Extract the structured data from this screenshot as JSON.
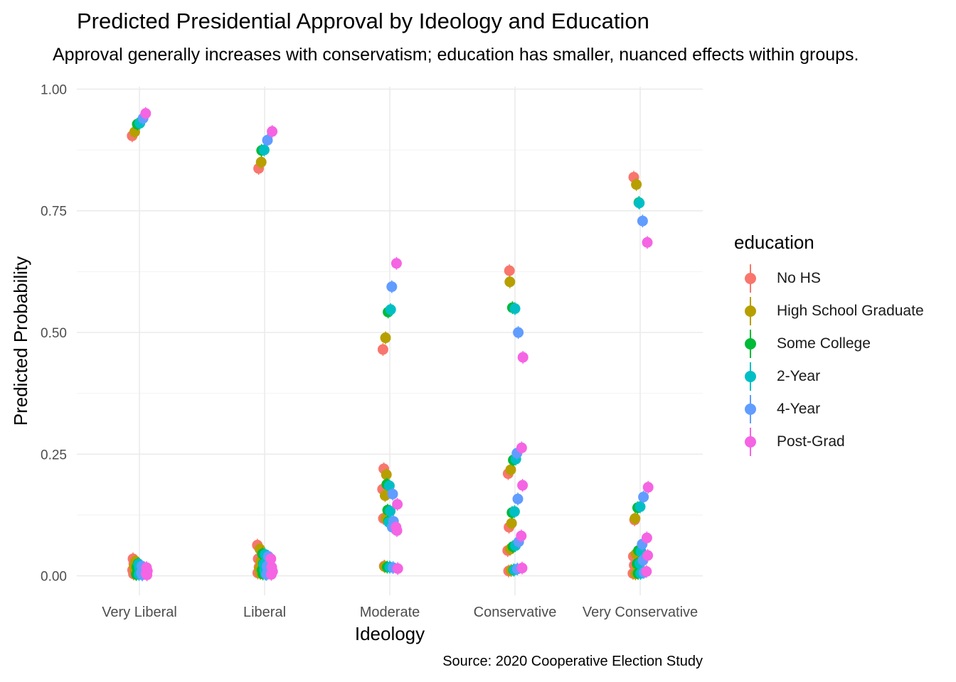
{
  "title": "Predicted Presidential Approval by Ideology and Education",
  "subtitle": "Approval generally increases with conservatism; education has smaller, nuanced effects within groups.",
  "caption": "Source: 2020 Cooperative Election Study",
  "legend": {
    "title": "education",
    "items": [
      {
        "label": "No HS",
        "color": "#F8766D"
      },
      {
        "label": "High School Graduate",
        "color": "#B79F00"
      },
      {
        "label": "Some College",
        "color": "#00BA38"
      },
      {
        "label": "2-Year",
        "color": "#00BFC4"
      },
      {
        "label": "4-Year",
        "color": "#619CFF"
      },
      {
        "label": "Post-Grad",
        "color": "#F564E3"
      }
    ]
  },
  "chart_data": {
    "type": "scatter",
    "xlabel": "Ideology",
    "ylabel": "Predicted Probability",
    "categories": [
      "Very Liberal",
      "Liberal",
      "Moderate",
      "Conservative",
      "Very Conservative"
    ],
    "ylim": [
      -0.04,
      1.005
    ],
    "yticks": [
      0.0,
      0.25,
      0.5,
      0.75,
      1.0
    ],
    "ytick_labels": [
      "0.00",
      "0.25",
      "0.50",
      "0.75",
      "1.00"
    ],
    "grid": true,
    "legend_position": "right",
    "series": [
      {
        "name": "No HS",
        "color": "#F8766D",
        "values": [
          [
            0.904,
            0.035,
            0.025,
            0.012,
            0.004
          ],
          [
            0.837,
            0.063,
            0.035,
            0.018,
            0.006
          ],
          [
            0.465,
            0.22,
            0.178,
            0.118,
            0.02
          ],
          [
            0.627,
            0.21,
            0.1,
            0.052,
            0.01
          ],
          [
            0.819,
            0.115,
            0.04,
            0.022,
            0.005
          ]
        ]
      },
      {
        "name": "High School Graduate",
        "color": "#B79F00",
        "values": [
          [
            0.912,
            0.03,
            0.02,
            0.01,
            0.003
          ],
          [
            0.85,
            0.055,
            0.03,
            0.015,
            0.005
          ],
          [
            0.489,
            0.208,
            0.165,
            0.118,
            0.019
          ],
          [
            0.604,
            0.218,
            0.108,
            0.055,
            0.011
          ],
          [
            0.804,
            0.118,
            0.045,
            0.022,
            0.004
          ]
        ]
      },
      {
        "name": "Some College",
        "color": "#00BA38",
        "values": [
          [
            0.928,
            0.025,
            0.018,
            0.008,
            0.003
          ],
          [
            0.874,
            0.045,
            0.025,
            0.012,
            0.004
          ],
          [
            0.542,
            0.188,
            0.135,
            0.112,
            0.018
          ],
          [
            0.551,
            0.238,
            0.13,
            0.06,
            0.012
          ],
          [
            0.767,
            0.14,
            0.052,
            0.025,
            0.005
          ]
        ]
      },
      {
        "name": "2-Year",
        "color": "#00BFC4",
        "values": [
          [
            0.93,
            0.024,
            0.016,
            0.008,
            0.003
          ],
          [
            0.875,
            0.044,
            0.024,
            0.012,
            0.004
          ],
          [
            0.547,
            0.185,
            0.133,
            0.11,
            0.018
          ],
          [
            0.549,
            0.24,
            0.132,
            0.062,
            0.012
          ],
          [
            0.766,
            0.142,
            0.05,
            0.025,
            0.005
          ]
        ]
      },
      {
        "name": "4-Year",
        "color": "#619CFF",
        "values": [
          [
            0.94,
            0.02,
            0.012,
            0.006,
            0.002
          ],
          [
            0.895,
            0.04,
            0.02,
            0.01,
            0.003
          ],
          [
            0.594,
            0.168,
            0.112,
            0.1,
            0.017
          ],
          [
            0.5,
            0.252,
            0.158,
            0.07,
            0.014
          ],
          [
            0.729,
            0.162,
            0.065,
            0.032,
            0.007
          ]
        ]
      },
      {
        "name": "Post-Grad",
        "color": "#F564E3",
        "values": [
          [
            0.95,
            0.017,
            0.01,
            0.005,
            0.002
          ],
          [
            0.913,
            0.035,
            0.018,
            0.009,
            0.003
          ],
          [
            0.642,
            0.147,
            0.1,
            0.093,
            0.015
          ],
          [
            0.449,
            0.263,
            0.186,
            0.082,
            0.016
          ],
          [
            0.685,
            0.182,
            0.078,
            0.042,
            0.009
          ]
        ]
      }
    ]
  }
}
